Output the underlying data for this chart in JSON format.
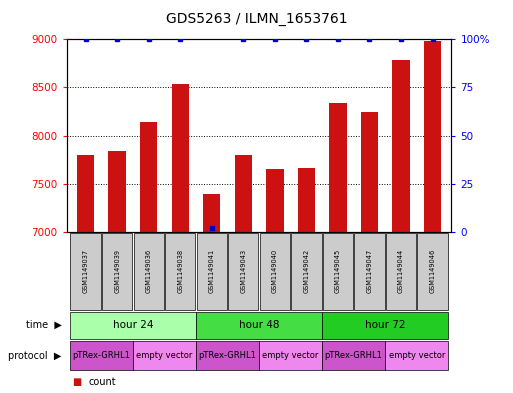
{
  "title": "GDS5263 / ILMN_1653761",
  "samples": [
    "GSM1149037",
    "GSM1149039",
    "GSM1149036",
    "GSM1149038",
    "GSM1149041",
    "GSM1149043",
    "GSM1149040",
    "GSM1149042",
    "GSM1149045",
    "GSM1149047",
    "GSM1149044",
    "GSM1149046"
  ],
  "counts": [
    7800,
    7840,
    8140,
    8540,
    7390,
    7800,
    7650,
    7660,
    8340,
    8240,
    8780,
    8980
  ],
  "percentile_ranks": [
    100,
    100,
    100,
    100,
    2,
    100,
    100,
    100,
    100,
    100,
    100,
    100
  ],
  "ylim_left": [
    7000,
    9000
  ],
  "ylim_right": [
    0,
    100
  ],
  "yticks_left": [
    7000,
    7500,
    8000,
    8500,
    9000
  ],
  "yticks_right": [
    0,
    25,
    50,
    75,
    100
  ],
  "time_groups": [
    {
      "label": "hour 24",
      "start": 0,
      "end": 4,
      "color": "#aaffaa"
    },
    {
      "label": "hour 48",
      "start": 4,
      "end": 8,
      "color": "#44dd44"
    },
    {
      "label": "hour 72",
      "start": 8,
      "end": 12,
      "color": "#22cc22"
    }
  ],
  "protocol_groups": [
    {
      "label": "pTRex-GRHL1",
      "start": 0,
      "end": 2,
      "color": "#cc55cc"
    },
    {
      "label": "empty vector",
      "start": 2,
      "end": 4,
      "color": "#ee88ee"
    },
    {
      "label": "pTRex-GRHL1",
      "start": 4,
      "end": 6,
      "color": "#cc55cc"
    },
    {
      "label": "empty vector",
      "start": 6,
      "end": 8,
      "color": "#ee88ee"
    },
    {
      "label": "pTRex-GRHL1",
      "start": 8,
      "end": 10,
      "color": "#cc55cc"
    },
    {
      "label": "empty vector",
      "start": 10,
      "end": 12,
      "color": "#ee88ee"
    }
  ],
  "bar_color": "#cc1111",
  "dot_color": "#0000cc",
  "sample_box_color": "#cccccc",
  "background_color": "#ffffff"
}
